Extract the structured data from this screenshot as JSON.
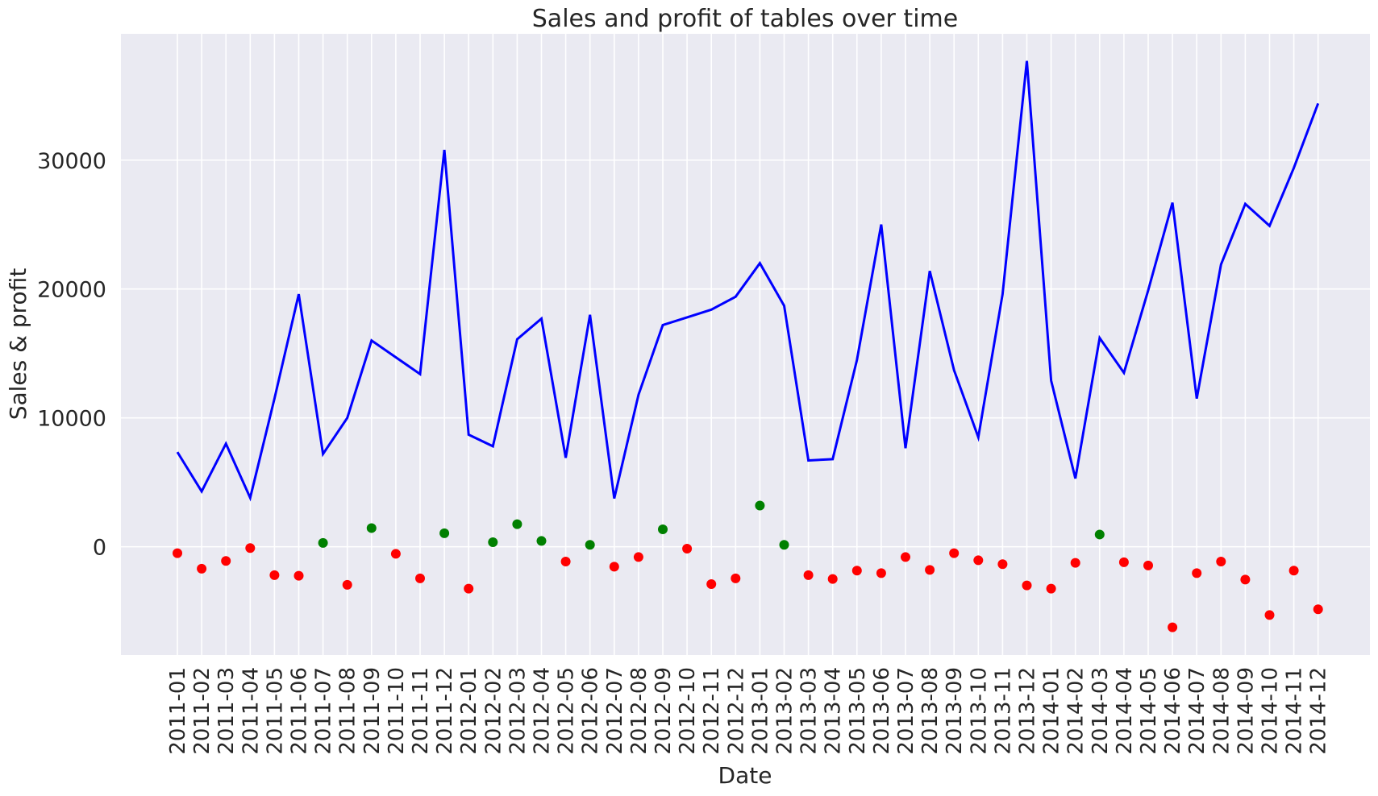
{
  "chart_data": {
    "type": "line",
    "title": "Sales and profit of tables over time",
    "xlabel": "Date",
    "ylabel": "Sales & profit",
    "ylim": [
      -8400,
      39800
    ],
    "yticks": [
      0,
      10000,
      20000,
      30000
    ],
    "grid": true,
    "background": "#eaeaf2",
    "gridColor": "#ffffff",
    "categories": [
      "2011-01",
      "2011-02",
      "2011-03",
      "2011-04",
      "2011-05",
      "2011-06",
      "2011-07",
      "2011-08",
      "2011-09",
      "2011-10",
      "2011-11",
      "2011-12",
      "2012-01",
      "2012-02",
      "2012-03",
      "2012-04",
      "2012-05",
      "2012-06",
      "2012-07",
      "2012-08",
      "2012-09",
      "2012-10",
      "2012-11",
      "2012-12",
      "2013-01",
      "2013-02",
      "2013-03",
      "2013-04",
      "2013-05",
      "2013-06",
      "2013-07",
      "2013-08",
      "2013-09",
      "2013-10",
      "2013-11",
      "2013-12",
      "2014-01",
      "2014-02",
      "2014-03",
      "2014-04",
      "2014-05",
      "2014-06",
      "2014-07",
      "2014-08",
      "2014-09",
      "2014-10",
      "2014-11",
      "2014-12"
    ],
    "series": [
      {
        "role": "sales",
        "style": "line",
        "color": "#0000ff",
        "values": [
          7350,
          4300,
          8000,
          3800,
          11500,
          19600,
          7200,
          10000,
          16000,
          14700,
          13400,
          30800,
          8700,
          7800,
          16100,
          17700,
          6900,
          18000,
          3750,
          11800,
          17200,
          17800,
          18400,
          19400,
          22000,
          18700,
          6700,
          6800,
          14500,
          25000,
          7650,
          21400,
          13700,
          8500,
          19600,
          37700,
          12900,
          5300,
          16200,
          13500,
          19900,
          26700,
          11500,
          21900,
          26600,
          24900,
          29400,
          34400
        ]
      },
      {
        "role": "profit",
        "style": "scatter",
        "positiveColor": "#008000",
        "negativeColor": "#ff0000",
        "values": [
          -500,
          -1700,
          -1100,
          -100,
          -2200,
          -2250,
          300,
          -2950,
          1450,
          -550,
          -2450,
          1050,
          -3250,
          350,
          1750,
          450,
          -1150,
          150,
          -1550,
          -800,
          1350,
          -150,
          -2900,
          -2450,
          3200,
          150,
          -2200,
          -2500,
          -1850,
          -2050,
          -800,
          -1800,
          -500,
          -1050,
          -1350,
          -3000,
          -3250,
          -1250,
          950,
          -1200,
          -1450,
          -6250,
          -2050,
          -1150,
          -2550,
          -5300,
          -1850,
          -4850
        ]
      }
    ]
  }
}
